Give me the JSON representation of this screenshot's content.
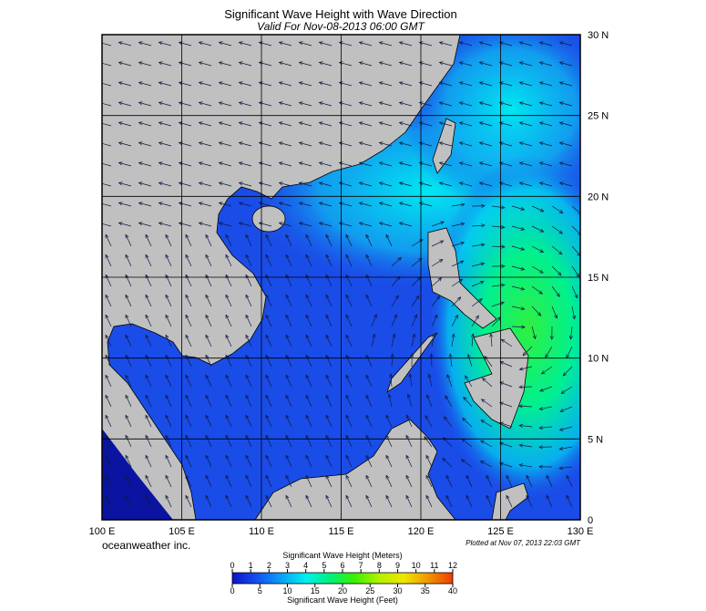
{
  "map": {
    "title": "Significant Wave Height with Wave Direction",
    "subtitle": "Valid For Nov-08-2013 06:00 GMT",
    "lon_ticks": [
      {
        "value": 100,
        "label": "100 E"
      },
      {
        "value": 105,
        "label": "105 E"
      },
      {
        "value": 110,
        "label": "110 E"
      },
      {
        "value": 115,
        "label": "115 E"
      },
      {
        "value": 120,
        "label": "120 E"
      },
      {
        "value": 125,
        "label": "125 E"
      },
      {
        "value": 130,
        "label": "130 E"
      }
    ],
    "lat_ticks": [
      0,
      {
        "value": 5,
        "label": "5 N"
      },
      {
        "value": 10,
        "label": "10 N"
      },
      {
        "value": 15,
        "label": "15 N"
      },
      {
        "value": 20,
        "label": "20 N"
      },
      {
        "value": 25,
        "label": "25 N"
      },
      {
        "value": 30,
        "label": "30 N"
      }
    ],
    "credit": "oceanweather inc.",
    "plotted": "Plotted at Nov 07, 2013 22:03 GMT"
  },
  "colorbar": {
    "title_top": "Significant Wave Height (Meters)",
    "title_bottom": "Significant Wave Height (Feet)",
    "meters_ticks": [
      0,
      1,
      2,
      3,
      4,
      5,
      6,
      7,
      8,
      9,
      10,
      11,
      12
    ],
    "feet_ticks": [
      0,
      5,
      10,
      15,
      20,
      25,
      30,
      35,
      40
    ],
    "colors": [
      "#0a14c8",
      "#1450f0",
      "#0aa0f5",
      "#00f0f0",
      "#00f07a",
      "#3cf000",
      "#b4f000",
      "#f0e600",
      "#f09600",
      "#f03c00"
    ]
  }
}
